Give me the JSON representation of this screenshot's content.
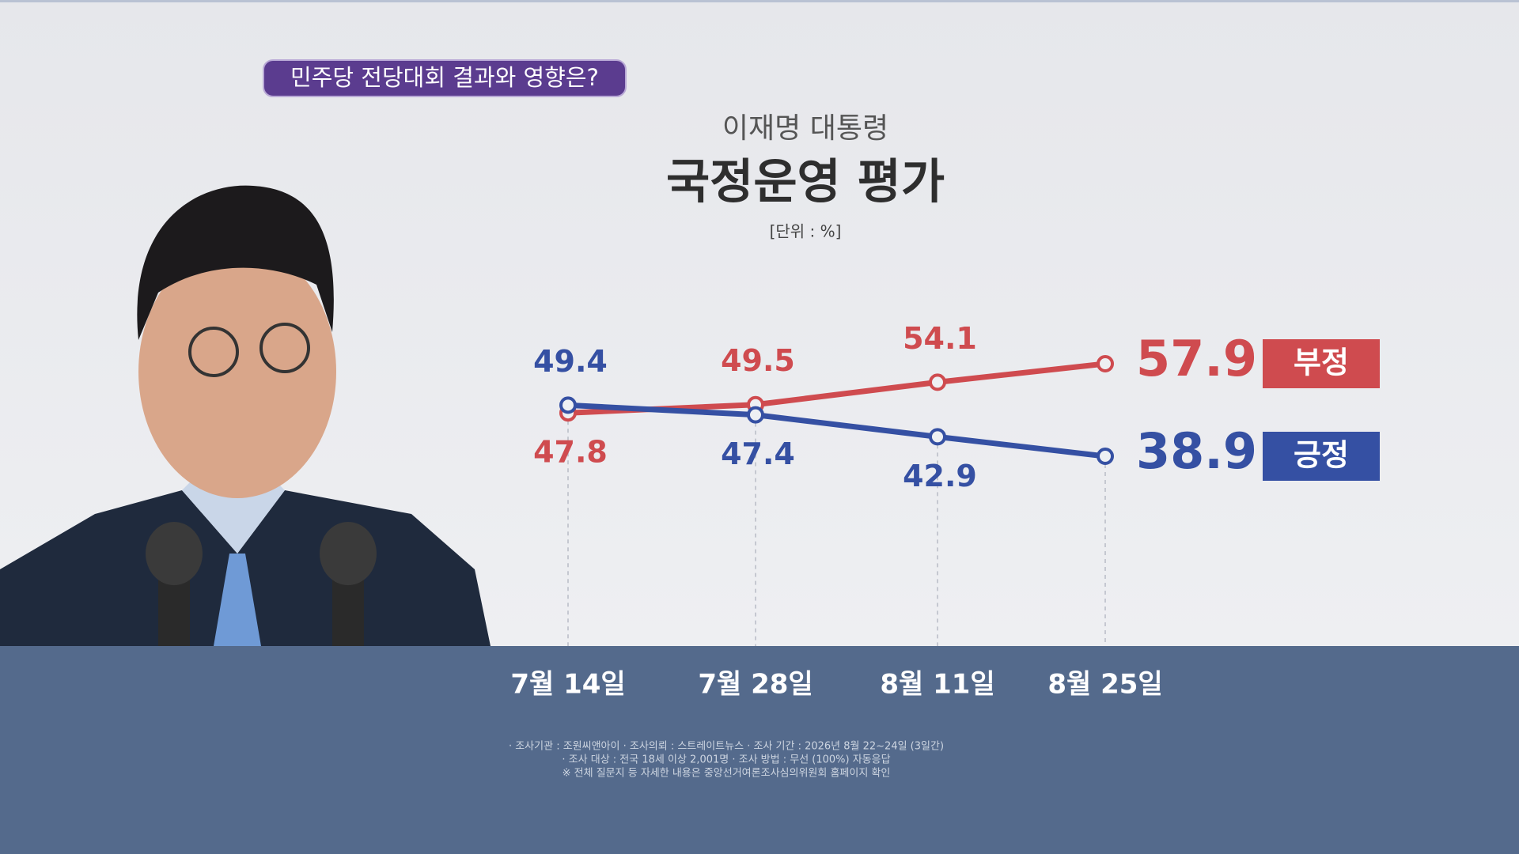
{
  "header": {
    "tag": "민주당 전당대회 결과와 영향은?"
  },
  "chart_data": {
    "type": "line",
    "subtitle": "이재명 대통령",
    "title": "국정운영 평가",
    "unit": "[단위 : %]",
    "categories": [
      "7월 14일",
      "7월 28일",
      "8월 11일",
      "8월 25일"
    ],
    "series": [
      {
        "name": "부정",
        "color": "#cf4b4f",
        "values": [
          47.8,
          49.5,
          54.1,
          57.9
        ]
      },
      {
        "name": "긍정",
        "color": "#3550a3",
        "values": [
          49.4,
          47.4,
          42.9,
          38.9
        ]
      }
    ]
  },
  "footnotes": [
    "· 조사기관 : 조원씨앤아이   · 조사의뢰 : 스트레이트뉴스   · 조사 기간 : 2026년 8월 22~24일 (3일간)",
    "· 조사 대상 : 전국 18세 이상 2,001명   · 조사 방법 : 무선 (100%) 자동응답",
    "※ 전체 질문지 등 자세한 내용은 중앙선거여론조사심의위원회 홈페이지 확인"
  ]
}
